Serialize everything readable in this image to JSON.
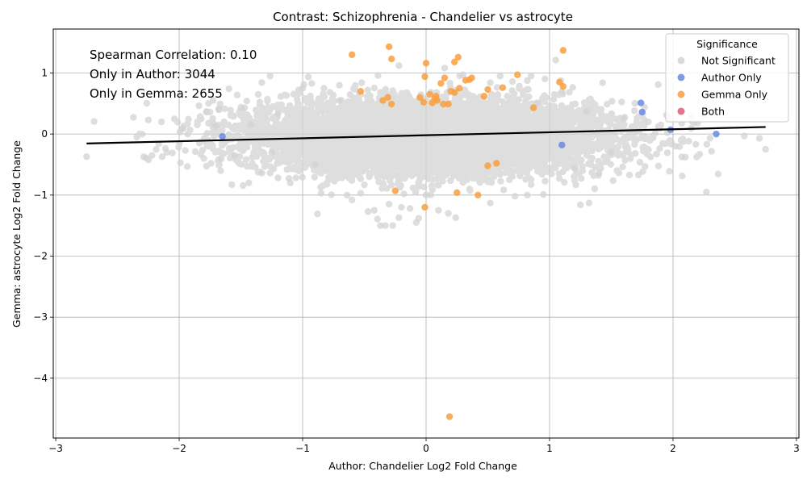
{
  "chart_data": {
    "type": "scatter",
    "title": "Contrast: Schizophrenia - Chandelier vs astrocyte",
    "xlabel": "Author: Chandelier Log2 Fold Change",
    "ylabel": "Gemma: astrocyte Log2 Fold Change",
    "xlim": [
      -3.02,
      3.02
    ],
    "ylim": [
      -4.98,
      1.72
    ],
    "xticks": [
      "−3",
      "−2",
      "−1",
      "0",
      "1",
      "2",
      "3"
    ],
    "xtick_values": [
      -3,
      -2,
      -1,
      0,
      1,
      2,
      3
    ],
    "yticks": [
      "−4",
      "−3",
      "−2",
      "−1",
      "0",
      "1"
    ],
    "ytick_values": [
      -4,
      -3,
      -2,
      -1,
      0,
      1
    ],
    "grid": true,
    "annotations": [
      "Spearman Correlation: 0.10",
      "Only in Author: 3044",
      "Only in Gemma: 2655"
    ],
    "regression_line": {
      "x": [
        -2.75,
        2.75
      ],
      "y": [
        -0.155,
        0.115
      ],
      "color": "#000000"
    },
    "legend": {
      "title": "Significance",
      "placement": "top-right",
      "entries": [
        "Not Significant",
        "Author Only",
        "Gemma Only",
        "Both"
      ]
    },
    "colors": {
      "not_significant": "#d3d3d3",
      "author_only": "#6b8be0",
      "gemma_only": "#f9a040",
      "both": "#e05a78"
    },
    "not_significant_cloud": {
      "count": 9000,
      "x_center": 0.0,
      "y_center": -0.05,
      "x_spread": 0.7,
      "y_spread": 0.28
    },
    "series": [
      {
        "name": "Not Significant",
        "points": [
          [
            -2.75,
            -0.37
          ],
          [
            -2.27,
            -0.39
          ],
          [
            -2.25,
            0.23
          ],
          [
            -2.22,
            -0.35
          ],
          [
            -2.1,
            -0.3
          ],
          [
            -1.97,
            0.09
          ],
          [
            -1.95,
            -0.27
          ],
          [
            -1.8,
            -0.4
          ],
          [
            -1.78,
            0.36
          ],
          [
            -1.72,
            0.17
          ],
          [
            -1.7,
            0.12
          ],
          [
            -1.68,
            0.41
          ],
          [
            -1.66,
            -0.41
          ],
          [
            -1.55,
            -0.35
          ],
          [
            -1.5,
            0.44
          ],
          [
            -1.47,
            0.43
          ],
          [
            -1.42,
            0.15
          ],
          [
            -1.33,
            -0.64
          ],
          [
            -1.1,
            -0.8
          ],
          [
            -1.0,
            0.75
          ],
          [
            -0.99,
            0.81
          ],
          [
            -0.88,
            -1.31
          ],
          [
            -0.85,
            -0.97
          ],
          [
            -0.6,
            -1.08
          ],
          [
            -0.53,
            -0.97
          ],
          [
            -0.47,
            -1.27
          ],
          [
            -0.42,
            -1.25
          ],
          [
            -0.37,
            -1.5
          ],
          [
            -0.33,
            -1.5
          ],
          [
            -0.3,
            -1.15
          ],
          [
            -0.27,
            -1.5
          ],
          [
            -0.22,
            -1.37
          ],
          [
            -0.2,
            -1.2
          ],
          [
            -0.13,
            -1.22
          ],
          [
            -0.08,
            -1.45
          ],
          [
            -0.06,
            -1.38
          ],
          [
            0.0,
            -1.0
          ],
          [
            0.1,
            -1.25
          ],
          [
            0.18,
            -1.3
          ],
          [
            0.24,
            -1.37
          ],
          [
            0.52,
            -1.13
          ],
          [
            -0.39,
            0.96
          ],
          [
            -0.22,
            1.12
          ],
          [
            0.15,
            1.08
          ],
          [
            0.3,
            0.97
          ],
          [
            0.52,
            0.84
          ],
          [
            0.6,
            0.95
          ],
          [
            0.7,
            0.86
          ],
          [
            0.85,
            0.95
          ],
          [
            1.05,
            1.21
          ],
          [
            1.43,
            0.84
          ],
          [
            1.88,
            0.81
          ],
          [
            1.25,
            -1.16
          ],
          [
            1.32,
            -1.13
          ],
          [
            1.72,
            -0.67
          ],
          [
            1.97,
            -0.61
          ],
          [
            2.1,
            -0.38
          ],
          [
            2.27,
            -0.95
          ],
          [
            2.3,
            -0.07
          ],
          [
            2.7,
            -0.07
          ],
          [
            2.75,
            -0.25
          ],
          [
            2.02,
            -0.2
          ],
          [
            2.15,
            0.3
          ],
          [
            2.2,
            0.18
          ],
          [
            1.8,
            0.2
          ],
          [
            1.6,
            0.25
          ],
          [
            1.5,
            -0.3
          ],
          [
            1.4,
            -0.64
          ],
          [
            1.2,
            -0.56
          ],
          [
            0.95,
            -0.99
          ],
          [
            0.82,
            -1.0
          ],
          [
            0.72,
            -1.02
          ],
          [
            0.9,
            0.51
          ],
          [
            1.1,
            0.7
          ],
          [
            1.3,
            0.37
          ],
          [
            -1.2,
            0.33
          ],
          [
            -1.25,
            -0.3
          ],
          [
            -0.9,
            -0.5
          ],
          [
            -0.7,
            0.55
          ]
        ]
      },
      {
        "name": "Author Only",
        "points": [
          [
            -1.65,
            -0.04
          ],
          [
            1.74,
            0.51
          ],
          [
            1.75,
            0.36
          ],
          [
            1.98,
            0.07
          ],
          [
            2.35,
            0.0
          ],
          [
            1.1,
            -0.18
          ]
        ]
      },
      {
        "name": "Gemma Only",
        "points": [
          [
            -0.6,
            1.3
          ],
          [
            -0.3,
            1.43
          ],
          [
            -0.28,
            1.23
          ],
          [
            0.0,
            1.16
          ],
          [
            0.26,
            1.26
          ],
          [
            0.23,
            1.18
          ],
          [
            1.11,
            1.37
          ],
          [
            -0.53,
            0.7
          ],
          [
            -0.35,
            0.55
          ],
          [
            -0.31,
            0.6
          ],
          [
            -0.28,
            0.49
          ],
          [
            -0.02,
            0.52
          ],
          [
            -0.01,
            0.94
          ],
          [
            0.05,
            0.51
          ],
          [
            0.07,
            0.58
          ],
          [
            0.08,
            0.62
          ],
          [
            0.12,
            0.83
          ],
          [
            0.15,
            0.92
          ],
          [
            0.18,
            0.49
          ],
          [
            0.2,
            0.7
          ],
          [
            0.23,
            0.68
          ],
          [
            0.27,
            0.75
          ],
          [
            0.32,
            0.88
          ],
          [
            0.35,
            0.89
          ],
          [
            0.37,
            0.92
          ],
          [
            0.47,
            0.62
          ],
          [
            0.5,
            0.73
          ],
          [
            0.62,
            0.76
          ],
          [
            0.74,
            0.97
          ],
          [
            0.87,
            0.43
          ],
          [
            1.08,
            0.85
          ],
          [
            1.11,
            0.78
          ],
          [
            -0.25,
            -0.93
          ],
          [
            0.25,
            -0.96
          ],
          [
            0.42,
            -1.0
          ],
          [
            -0.01,
            -1.2
          ],
          [
            0.5,
            -0.52
          ],
          [
            0.57,
            -0.48
          ],
          [
            0.19,
            -4.63
          ],
          [
            0.14,
            0.49
          ],
          [
            0.03,
            0.65
          ],
          [
            -0.05,
            0.6
          ],
          [
            0.09,
            0.55
          ]
        ]
      },
      {
        "name": "Both",
        "points": []
      }
    ]
  }
}
